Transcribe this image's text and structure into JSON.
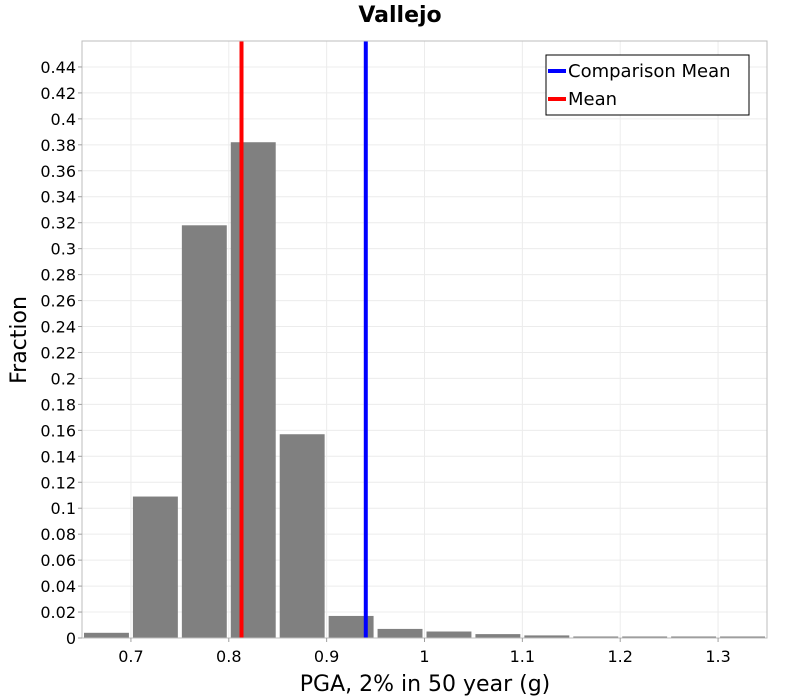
{
  "chart_data": {
    "type": "bar",
    "title": "Vallejo",
    "xlabel": "PGA, 2% in 50 year (g)",
    "ylabel": "Fraction",
    "xlim": [
      0.65,
      1.35
    ],
    "ylim": [
      0,
      0.46
    ],
    "bin_width": 0.05,
    "bins": [
      {
        "x_start": 0.65,
        "value": 0.004
      },
      {
        "x_start": 0.7,
        "value": 0.109
      },
      {
        "x_start": 0.75,
        "value": 0.318
      },
      {
        "x_start": 0.8,
        "value": 0.382
      },
      {
        "x_start": 0.85,
        "value": 0.157
      },
      {
        "x_start": 0.9,
        "value": 0.017
      },
      {
        "x_start": 0.95,
        "value": 0.007
      },
      {
        "x_start": 1.0,
        "value": 0.005
      },
      {
        "x_start": 1.05,
        "value": 0.003
      },
      {
        "x_start": 1.1,
        "value": 0.002
      },
      {
        "x_start": 1.15,
        "value": 0.0005
      },
      {
        "x_start": 1.2,
        "value": 0.0003
      },
      {
        "x_start": 1.25,
        "value": 0.0002
      },
      {
        "x_start": 1.3,
        "value": 0.0001
      }
    ],
    "x_ticks": [
      "0.7",
      "0.8",
      "0.9",
      "1",
      "1.1",
      "1.2",
      "1.3"
    ],
    "x_tick_values": [
      0.7,
      0.8,
      0.9,
      1.0,
      1.1,
      1.2,
      1.3
    ],
    "y_ticks": [
      "0",
      "0.02",
      "0.04",
      "0.06",
      "0.08",
      "0.1",
      "0.12",
      "0.14",
      "0.16",
      "0.18",
      "0.2",
      "0.22",
      "0.24",
      "0.26",
      "0.28",
      "0.3",
      "0.32",
      "0.34",
      "0.36",
      "0.38",
      "0.4",
      "0.42",
      "0.44"
    ],
    "y_tick_values": [
      0,
      0.02,
      0.04,
      0.06,
      0.08,
      0.1,
      0.12,
      0.14,
      0.16,
      0.18,
      0.2,
      0.22,
      0.24,
      0.26,
      0.28,
      0.3,
      0.32,
      0.34,
      0.36,
      0.38,
      0.4,
      0.42,
      0.44
    ],
    "vertical_lines": [
      {
        "name": "Comparison Mean",
        "x": 0.94,
        "color": "#0000ff"
      },
      {
        "name": "Mean",
        "x": 0.813,
        "color": "#ff0000"
      }
    ],
    "bar_color": "#808080",
    "grid": true,
    "legend_position": "top-right"
  }
}
